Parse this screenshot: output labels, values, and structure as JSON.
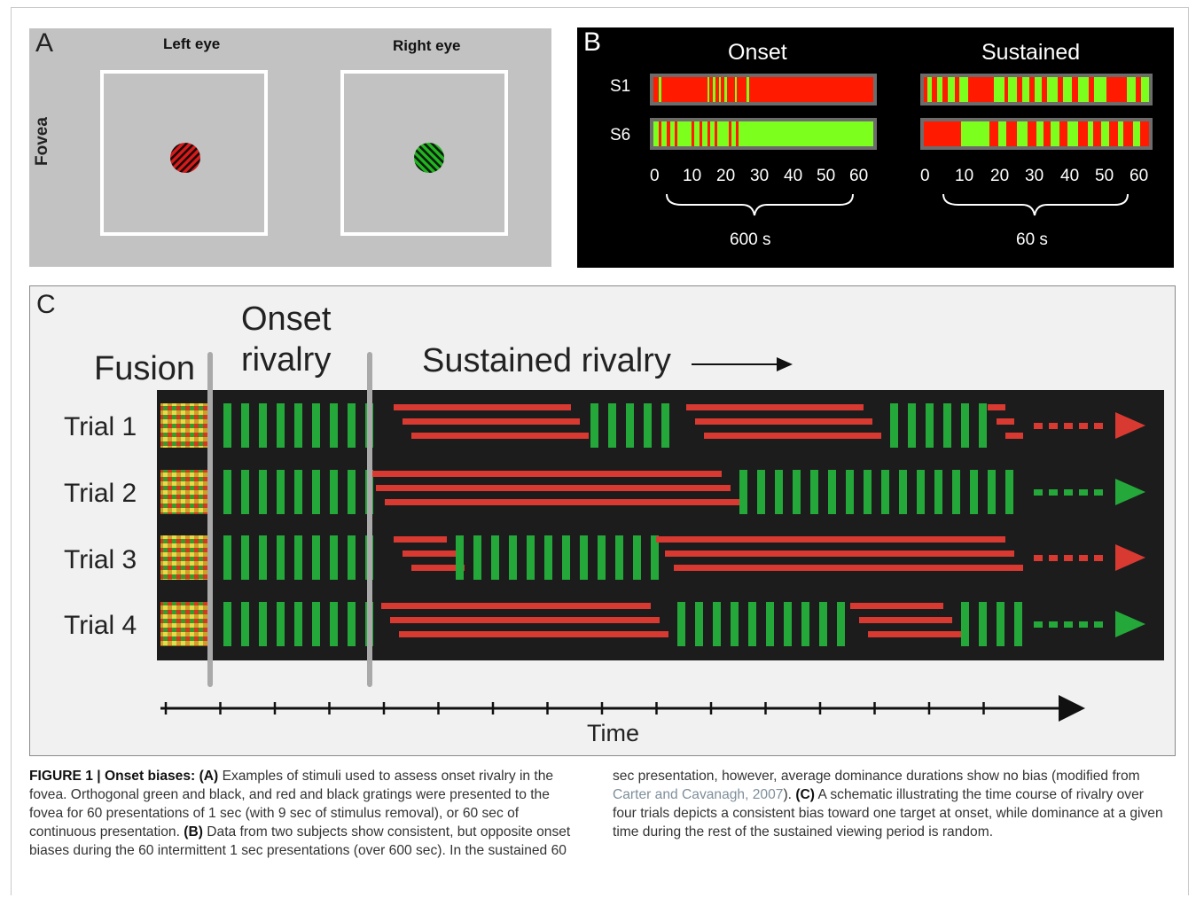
{
  "panel_a": {
    "letter": "A",
    "left_eye_label": "Left eye",
    "right_eye_label": "Right eye",
    "fovea_label": "Fovea",
    "left_color": "#d91a1a",
    "right_color": "#22b521"
  },
  "panel_b": {
    "letter": "B",
    "onset_title": "Onset",
    "sustained_title": "Sustained",
    "rows": [
      "S1",
      "S6"
    ],
    "ticks": [
      "0",
      "10",
      "20",
      "30",
      "40",
      "50",
      "60"
    ],
    "onset_duration": "600 s",
    "sustained_duration": "60 s",
    "red": "#ff0000",
    "green": "#7cff1c"
  },
  "panel_c": {
    "letter": "C",
    "fusion": "Fusion",
    "onset_line1": "Onset",
    "onset_line2": "rivalry",
    "sustained": "Sustained rivalry",
    "trials": [
      "Trial 1",
      "Trial 2",
      "Trial 3",
      "Trial 4"
    ],
    "time_label": "Time",
    "red": "#d83a32",
    "green": "#25a83a"
  },
  "caption": {
    "fig_label": "FIGURE 1 | Onset biases:",
    "a_label": "(A)",
    "a_text": "Examples of stimuli used to assess onset rivalry in the fovea. Orthogonal green and black, and red and black gratings were presented to the fovea for 60 presentations of 1 sec (with 9 sec of stimulus removal), or 60 sec of continuous presentation.",
    "b_label": "(B)",
    "b_text": "Data from two subjects show consistent, but opposite onset biases during the 60 intermittent 1 sec presentations (over 600 sec). In the sustained 60 sec presentation, however, average dominance durations show no bias (modified from",
    "citation": "Carter and Cavanagh, 2007",
    "after_cite": ").",
    "c_label": "(C)",
    "c_text": "A schematic illustrating the time course of rivalry over four trials depicts a consistent bias toward one target at onset, while dominance at a given time during the rest of the sustained viewing period is random."
  }
}
